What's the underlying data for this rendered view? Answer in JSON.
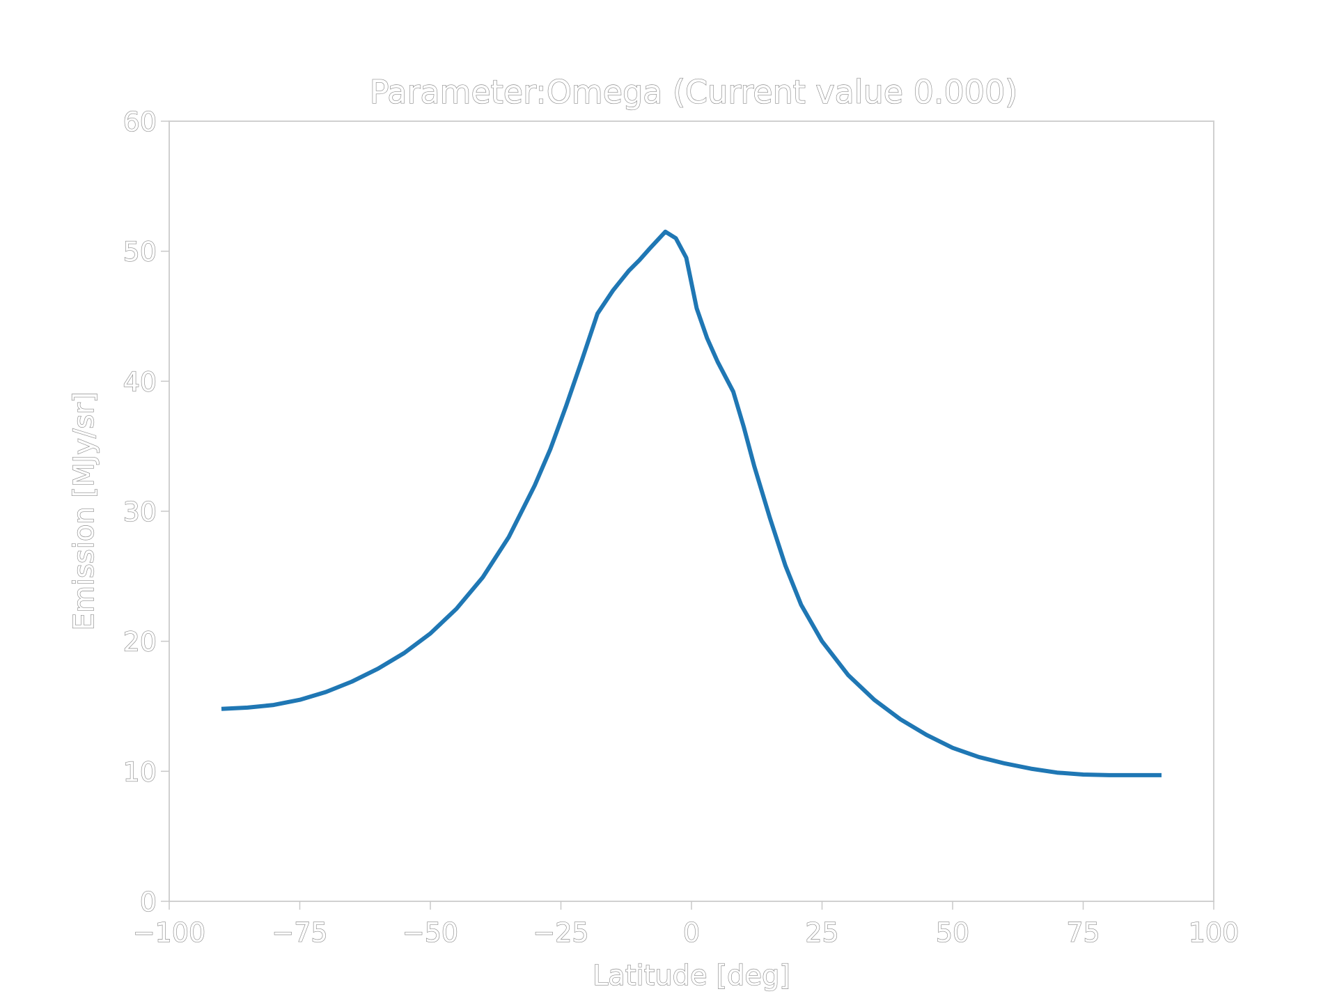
{
  "chart_data": {
    "type": "line",
    "title": "Parameter:Omega (Current value 0.000)",
    "xlabel": "Latitude [deg]",
    "ylabel": "Emission [MJy/sr]",
    "xlim": [
      -100,
      100
    ],
    "ylim": [
      0,
      60
    ],
    "xticks": [
      "−100",
      "−75",
      "−50",
      "−25",
      "0",
      "25",
      "50",
      "75",
      "100"
    ],
    "xtick_values": [
      -100,
      -75,
      -50,
      -25,
      0,
      25,
      50,
      75,
      100
    ],
    "yticks": [
      "0",
      "10",
      "20",
      "30",
      "40",
      "50",
      "60"
    ],
    "ytick_values": [
      0,
      10,
      20,
      30,
      40,
      50,
      60
    ],
    "grid": false,
    "series": [
      {
        "color": "#1f77b4",
        "x": [
          -90,
          -85,
          -80,
          -75,
          -70,
          -65,
          -60,
          -55,
          -50,
          -45,
          -40,
          -35,
          -30,
          -27,
          -24,
          -21,
          -18,
          -15,
          -12,
          -10,
          -8,
          -5,
          -3,
          -1,
          1,
          3,
          5,
          8,
          10,
          12,
          15,
          18,
          21,
          25,
          30,
          35,
          40,
          45,
          50,
          55,
          60,
          65,
          70,
          75,
          80,
          85,
          90
        ],
        "y": [
          14.8,
          14.9,
          15.1,
          15.5,
          16.1,
          16.9,
          17.9,
          19.1,
          20.6,
          22.5,
          24.9,
          28.0,
          32.0,
          34.8,
          38.1,
          41.6,
          45.2,
          47.0,
          48.5,
          49.3,
          50.2,
          51.5,
          51.0,
          49.5,
          45.6,
          43.3,
          41.5,
          39.2,
          36.5,
          33.5,
          29.5,
          25.8,
          22.8,
          20.0,
          17.4,
          15.5,
          14.0,
          12.8,
          11.8,
          11.1,
          10.6,
          10.2,
          9.9,
          9.75,
          9.7,
          9.7,
          9.7
        ]
      }
    ]
  }
}
